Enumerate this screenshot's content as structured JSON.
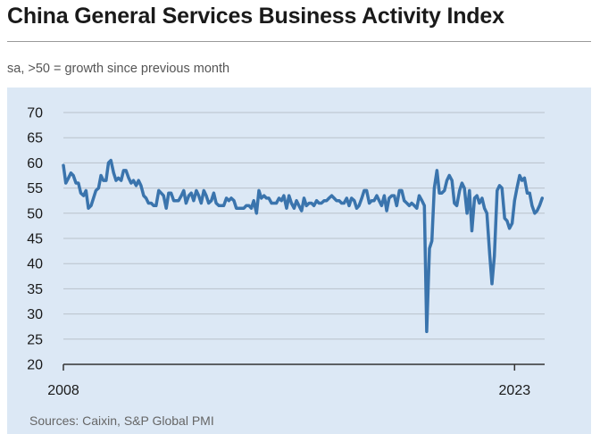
{
  "header": {
    "title": "China General Services Business Activity Index",
    "subtitle": "sa, >50 = growth since previous month"
  },
  "footer": {
    "source": "Sources: Caixin, S&P Global PMI"
  },
  "colors": {
    "line": "#3a74ad",
    "panel": "#dce8f5",
    "grid": "#b9c2cb",
    "axis": "#333333"
  },
  "chart_data": {
    "type": "line",
    "title": "China General Services Business Activity Index",
    "subtitle": "sa, >50 = growth since previous month",
    "xlabel": "",
    "ylabel": "",
    "ylim": [
      20,
      70
    ],
    "yticks": [
      20,
      25,
      30,
      35,
      40,
      45,
      50,
      55,
      60,
      65,
      70
    ],
    "xlim": [
      2008.0,
      2024.0
    ],
    "xtick_labels": [
      {
        "label": "2008",
        "value": 2008.0
      },
      {
        "label": "2023",
        "value": 2023.0
      }
    ],
    "grid": true,
    "series": [
      {
        "name": "Services Business Activity Index",
        "points": [
          [
            2008.0,
            59.5
          ],
          [
            2008.08,
            56.0
          ],
          [
            2008.17,
            57.0
          ],
          [
            2008.25,
            58.0
          ],
          [
            2008.33,
            57.5
          ],
          [
            2008.42,
            56.0
          ],
          [
            2008.5,
            56.0
          ],
          [
            2008.58,
            54.0
          ],
          [
            2008.67,
            53.5
          ],
          [
            2008.75,
            54.5
          ],
          [
            2008.83,
            51.0
          ],
          [
            2008.92,
            51.5
          ],
          [
            2009.0,
            53.0
          ],
          [
            2009.08,
            54.5
          ],
          [
            2009.17,
            55.0
          ],
          [
            2009.25,
            57.5
          ],
          [
            2009.33,
            56.5
          ],
          [
            2009.42,
            56.5
          ],
          [
            2009.5,
            60.0
          ],
          [
            2009.58,
            60.5
          ],
          [
            2009.67,
            58.0
          ],
          [
            2009.75,
            56.5
          ],
          [
            2009.83,
            57.0
          ],
          [
            2009.92,
            56.5
          ],
          [
            2010.0,
            58.5
          ],
          [
            2010.08,
            58.5
          ],
          [
            2010.17,
            57.0
          ],
          [
            2010.25,
            56.0
          ],
          [
            2010.33,
            56.5
          ],
          [
            2010.42,
            55.5
          ],
          [
            2010.5,
            56.5
          ],
          [
            2010.58,
            55.5
          ],
          [
            2010.67,
            53.5
          ],
          [
            2010.75,
            53.0
          ],
          [
            2010.83,
            52.0
          ],
          [
            2010.92,
            52.0
          ],
          [
            2011.0,
            51.5
          ],
          [
            2011.08,
            51.5
          ],
          [
            2011.17,
            54.5
          ],
          [
            2011.25,
            54.0
          ],
          [
            2011.33,
            53.5
          ],
          [
            2011.42,
            51.0
          ],
          [
            2011.5,
            54.0
          ],
          [
            2011.58,
            54.0
          ],
          [
            2011.67,
            52.5
          ],
          [
            2011.75,
            52.5
          ],
          [
            2011.83,
            52.5
          ],
          [
            2011.92,
            53.5
          ],
          [
            2012.0,
            54.5
          ],
          [
            2012.08,
            52.0
          ],
          [
            2012.17,
            53.5
          ],
          [
            2012.25,
            54.0
          ],
          [
            2012.33,
            52.5
          ],
          [
            2012.42,
            54.5
          ],
          [
            2012.5,
            53.5
          ],
          [
            2012.58,
            52.0
          ],
          [
            2012.67,
            54.5
          ],
          [
            2012.75,
            53.5
          ],
          [
            2012.83,
            52.0
          ],
          [
            2012.92,
            52.5
          ],
          [
            2013.0,
            54.0
          ],
          [
            2013.08,
            52.0
          ],
          [
            2013.17,
            51.5
          ],
          [
            2013.25,
            51.5
          ],
          [
            2013.33,
            51.5
          ],
          [
            2013.42,
            53.0
          ],
          [
            2013.5,
            52.5
          ],
          [
            2013.58,
            53.0
          ],
          [
            2013.67,
            52.5
          ],
          [
            2013.75,
            51.0
          ],
          [
            2013.83,
            51.0
          ],
          [
            2013.92,
            51.0
          ],
          [
            2014.0,
            51.0
          ],
          [
            2014.08,
            51.5
          ],
          [
            2014.17,
            51.5
          ],
          [
            2014.25,
            51.0
          ],
          [
            2014.33,
            52.5
          ],
          [
            2014.42,
            50.0
          ],
          [
            2014.5,
            54.5
          ],
          [
            2014.58,
            53.0
          ],
          [
            2014.67,
            53.5
          ],
          [
            2014.75,
            53.0
          ],
          [
            2014.83,
            53.0
          ],
          [
            2014.92,
            52.0
          ],
          [
            2015.0,
            52.0
          ],
          [
            2015.08,
            52.0
          ],
          [
            2015.17,
            53.0
          ],
          [
            2015.25,
            52.5
          ],
          [
            2015.33,
            53.5
          ],
          [
            2015.42,
            51.0
          ],
          [
            2015.5,
            53.5
          ],
          [
            2015.58,
            52.0
          ],
          [
            2015.67,
            51.0
          ],
          [
            2015.75,
            52.5
          ],
          [
            2015.83,
            51.5
          ],
          [
            2015.92,
            50.5
          ],
          [
            2016.0,
            53.0
          ],
          [
            2016.08,
            51.5
          ],
          [
            2016.17,
            52.0
          ],
          [
            2016.25,
            52.0
          ],
          [
            2016.33,
            51.5
          ],
          [
            2016.42,
            52.5
          ],
          [
            2016.5,
            52.0
          ],
          [
            2016.58,
            52.0
          ],
          [
            2016.67,
            52.5
          ],
          [
            2016.75,
            52.5
          ],
          [
            2016.83,
            53.0
          ],
          [
            2016.92,
            53.5
          ],
          [
            2017.0,
            53.0
          ],
          [
            2017.08,
            52.5
          ],
          [
            2017.17,
            52.5
          ],
          [
            2017.25,
            52.0
          ],
          [
            2017.33,
            52.0
          ],
          [
            2017.42,
            53.0
          ],
          [
            2017.5,
            51.5
          ],
          [
            2017.58,
            53.0
          ],
          [
            2017.67,
            52.5
          ],
          [
            2017.75,
            51.0
          ],
          [
            2017.83,
            51.5
          ],
          [
            2017.92,
            53.0
          ],
          [
            2018.0,
            54.5
          ],
          [
            2018.08,
            54.5
          ],
          [
            2018.17,
            52.0
          ],
          [
            2018.25,
            52.5
          ],
          [
            2018.33,
            52.5
          ],
          [
            2018.42,
            53.5
          ],
          [
            2018.5,
            52.5
          ],
          [
            2018.58,
            51.5
          ],
          [
            2018.67,
            53.5
          ],
          [
            2018.75,
            50.5
          ],
          [
            2018.83,
            53.0
          ],
          [
            2018.92,
            53.5
          ],
          [
            2019.0,
            53.5
          ],
          [
            2019.08,
            51.5
          ],
          [
            2019.17,
            54.5
          ],
          [
            2019.25,
            54.5
          ],
          [
            2019.33,
            52.5
          ],
          [
            2019.42,
            52.0
          ],
          [
            2019.5,
            51.5
          ],
          [
            2019.58,
            52.0
          ],
          [
            2019.67,
            51.5
          ],
          [
            2019.75,
            51.0
          ],
          [
            2019.83,
            53.5
          ],
          [
            2019.92,
            52.5
          ],
          [
            2020.0,
            51.5
          ],
          [
            2020.08,
            26.5
          ],
          [
            2020.17,
            43.0
          ],
          [
            2020.25,
            44.5
          ],
          [
            2020.33,
            55.0
          ],
          [
            2020.42,
            58.5
          ],
          [
            2020.5,
            54.0
          ],
          [
            2020.58,
            54.0
          ],
          [
            2020.67,
            54.5
          ],
          [
            2020.75,
            56.5
          ],
          [
            2020.83,
            57.5
          ],
          [
            2020.92,
            56.5
          ],
          [
            2021.0,
            52.0
          ],
          [
            2021.08,
            51.5
          ],
          [
            2021.17,
            54.5
          ],
          [
            2021.25,
            56.0
          ],
          [
            2021.33,
            55.0
          ],
          [
            2021.42,
            50.0
          ],
          [
            2021.5,
            54.5
          ],
          [
            2021.58,
            46.5
          ],
          [
            2021.67,
            53.0
          ],
          [
            2021.75,
            53.5
          ],
          [
            2021.83,
            52.0
          ],
          [
            2021.92,
            53.0
          ],
          [
            2022.0,
            51.0
          ],
          [
            2022.08,
            50.0
          ],
          [
            2022.17,
            42.0
          ],
          [
            2022.25,
            36.0
          ],
          [
            2022.33,
            41.5
          ],
          [
            2022.42,
            54.5
          ],
          [
            2022.5,
            55.5
          ],
          [
            2022.58,
            55.0
          ],
          [
            2022.67,
            49.0
          ],
          [
            2022.75,
            48.5
          ],
          [
            2022.83,
            47.0
          ],
          [
            2022.92,
            48.0
          ],
          [
            2023.0,
            52.5
          ],
          [
            2023.08,
            55.0
          ],
          [
            2023.17,
            57.5
          ],
          [
            2023.25,
            56.5
          ],
          [
            2023.33,
            57.0
          ],
          [
            2023.42,
            54.0
          ],
          [
            2023.5,
            54.0
          ],
          [
            2023.58,
            51.5
          ],
          [
            2023.67,
            50.0
          ],
          [
            2023.75,
            50.5
          ],
          [
            2023.83,
            51.5
          ],
          [
            2023.92,
            53.0
          ]
        ]
      }
    ]
  }
}
